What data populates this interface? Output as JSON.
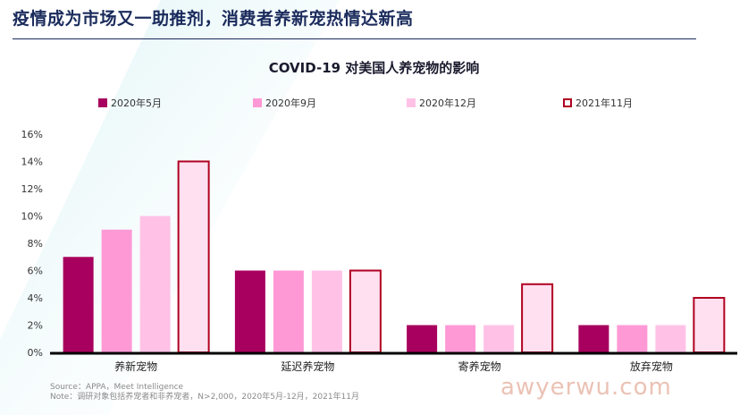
{
  "headline": "疫情成为市场又一助推剂，消费者养新宠热情达新高",
  "chart_data": {
    "type": "bar",
    "title": "COVID-19 对美国人养宠物的影响",
    "categories": [
      "养新宠物",
      "延迟养宠物",
      "寄养宠物",
      "放弃宠物"
    ],
    "series": [
      {
        "name": "2020年5月",
        "values": [
          7,
          6,
          2,
          2
        ],
        "color": "#a8005e",
        "outline": false
      },
      {
        "name": "2020年9月",
        "values": [
          9,
          6,
          2,
          2
        ],
        "color": "#ff99d6",
        "outline": false
      },
      {
        "name": "2020年12月",
        "values": [
          10,
          6,
          2,
          2
        ],
        "color": "#ffc2e6",
        "outline": false
      },
      {
        "name": "2021年11月",
        "values": [
          14,
          6,
          5,
          4
        ],
        "color": "#ffe0f0",
        "outline": true,
        "outline_color": "#b00020"
      }
    ],
    "ylim": [
      0,
      16
    ],
    "yticks": [
      "0%",
      "2%",
      "4%",
      "6%",
      "8%",
      "10%",
      "12%",
      "14%",
      "16%"
    ],
    "ytick_values": [
      0,
      2,
      4,
      6,
      8,
      10,
      12,
      14,
      16
    ],
    "legend_position": "top"
  },
  "source_line": "Source：APPA，Meet Intelligence",
  "note_line": "Note：调研对象包括养宠者和非养宠者，N>2,000，2020年5月-12月，2021年11月",
  "watermark": "awyerwu.com"
}
